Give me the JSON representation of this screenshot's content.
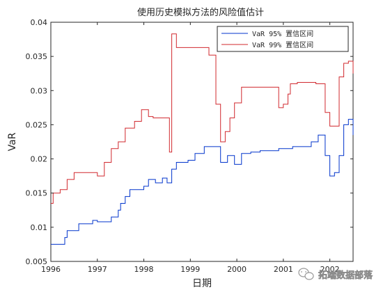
{
  "chart_data": {
    "type": "line",
    "title": "使用历史模拟方法的风险值估计",
    "xlabel": "日期",
    "ylabel": "VaR",
    "xlim": [
      1996,
      2002.5
    ],
    "ylim": [
      0.005,
      0.04
    ],
    "x_ticks": [
      "1996",
      "1997",
      "1998",
      "1999",
      "2000",
      "2001",
      "2002"
    ],
    "y_ticks": [
      "0.005",
      "0.01",
      "0.015",
      "0.02",
      "0.025",
      "0.03",
      "0.035",
      "0.04"
    ],
    "grid": false,
    "legend_position": "top-right",
    "series": [
      {
        "name": "VaR 95% 置信区间",
        "color": "#0033cc",
        "x": [
          1996.0,
          1996.15,
          1996.3,
          1996.35,
          1996.6,
          1996.7,
          1996.9,
          1997.0,
          1997.3,
          1997.45,
          1997.5,
          1997.6,
          1997.7,
          1997.9,
          1998.0,
          1998.1,
          1998.25,
          1998.4,
          1998.5,
          1998.6,
          1998.7,
          1998.8,
          1998.95,
          1999.0,
          1999.1,
          1999.3,
          1999.5,
          1999.65,
          1999.8,
          1999.95,
          2000.0,
          2000.1,
          2000.3,
          2000.5,
          2000.7,
          2000.9,
          2001.0,
          2001.2,
          2001.4,
          2001.6,
          2001.75,
          2001.9,
          2002.0,
          2002.1,
          2002.2,
          2002.3,
          2002.4,
          2002.5
        ],
        "values": [
          0.0075,
          0.0075,
          0.0085,
          0.0095,
          0.0105,
          0.0105,
          0.011,
          0.0108,
          0.0115,
          0.0125,
          0.0135,
          0.0145,
          0.0155,
          0.0155,
          0.016,
          0.017,
          0.0165,
          0.0172,
          0.0165,
          0.0185,
          0.0195,
          0.0195,
          0.0198,
          0.0198,
          0.0208,
          0.0218,
          0.0218,
          0.0195,
          0.0205,
          0.0192,
          0.0192,
          0.0208,
          0.021,
          0.0212,
          0.0212,
          0.0215,
          0.0215,
          0.0218,
          0.0218,
          0.0225,
          0.0235,
          0.0205,
          0.0175,
          0.018,
          0.0205,
          0.025,
          0.0258,
          0.0235
        ]
      },
      {
        "name": "VaR 99% 置信区间",
        "color": "#d1282e",
        "x": [
          1996.0,
          1996.05,
          1996.2,
          1996.35,
          1996.5,
          1996.8,
          1997.0,
          1997.15,
          1997.3,
          1997.45,
          1997.6,
          1997.8,
          1997.95,
          1998.1,
          1998.2,
          1998.4,
          1998.55,
          1998.6,
          1998.65,
          1998.7,
          1998.8,
          1998.9,
          1999.0,
          1999.2,
          1999.4,
          1999.55,
          1999.65,
          1999.75,
          1999.85,
          1999.95,
          2000.0,
          2000.1,
          2000.3,
          2000.5,
          2000.7,
          2000.9,
          2001.0,
          2001.1,
          2001.15,
          2001.3,
          2001.5,
          2001.7,
          2001.9,
          2002.0,
          2002.1,
          2002.2,
          2002.3,
          2002.4,
          2002.5
        ],
        "values": [
          0.0135,
          0.015,
          0.0155,
          0.017,
          0.018,
          0.018,
          0.0175,
          0.0195,
          0.0215,
          0.0225,
          0.0245,
          0.0255,
          0.0272,
          0.0262,
          0.026,
          0.026,
          0.021,
          0.0383,
          0.0383,
          0.0363,
          0.0363,
          0.0363,
          0.0363,
          0.0363,
          0.0352,
          0.028,
          0.0225,
          0.024,
          0.026,
          0.0282,
          0.0282,
          0.0305,
          0.0305,
          0.0305,
          0.0305,
          0.0275,
          0.028,
          0.0295,
          0.031,
          0.0312,
          0.0312,
          0.031,
          0.0268,
          0.0248,
          0.0248,
          0.032,
          0.034,
          0.0343,
          0.0325
        ]
      }
    ]
  },
  "watermark": {
    "text": "拓端数据部落",
    "icon": "wechat-icon"
  }
}
